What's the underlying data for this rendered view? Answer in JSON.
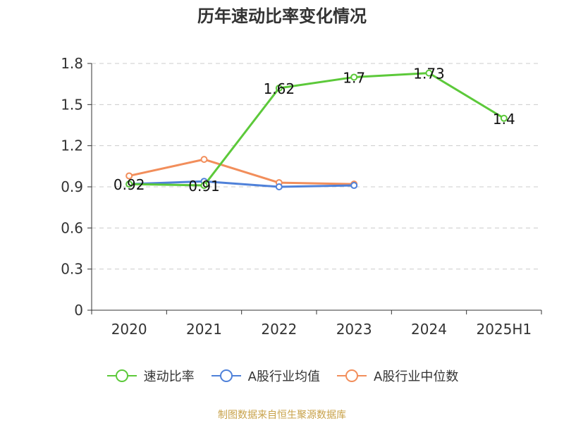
{
  "chart_data": {
    "type": "line",
    "title": "历年速动比率变化情况",
    "categories": [
      "2020",
      "2021",
      "2022",
      "2023",
      "2024",
      "2025H1"
    ],
    "ylim": [
      0,
      1.8
    ],
    "yticks": [
      "0",
      "0.3",
      "0.6",
      "0.9",
      "1.2",
      "1.5",
      "1.8"
    ],
    "ytick_values": [
      0,
      0.3,
      0.6,
      0.9,
      1.2,
      1.5,
      1.8
    ],
    "grid": true,
    "legend_position": "bottom",
    "series": [
      {
        "name": "速动比率",
        "color": "#5cc93a",
        "values": [
          0.92,
          0.91,
          1.62,
          1.7,
          1.73,
          1.4
        ],
        "labels": [
          "0.92",
          "0.91",
          "1.62",
          "1.7",
          "1.73",
          "1.4"
        ],
        "show_labels": true
      },
      {
        "name": "A股行业均值",
        "color": "#4f81d9",
        "values": [
          0.92,
          0.94,
          0.9,
          0.91,
          null,
          null
        ],
        "show_labels": false
      },
      {
        "name": "A股行业中位数",
        "color": "#f28e5b",
        "values": [
          0.98,
          1.1,
          0.93,
          0.92,
          null,
          null
        ],
        "show_labels": false
      }
    ]
  },
  "source_note": "制图数据来自恒生聚源数据库"
}
